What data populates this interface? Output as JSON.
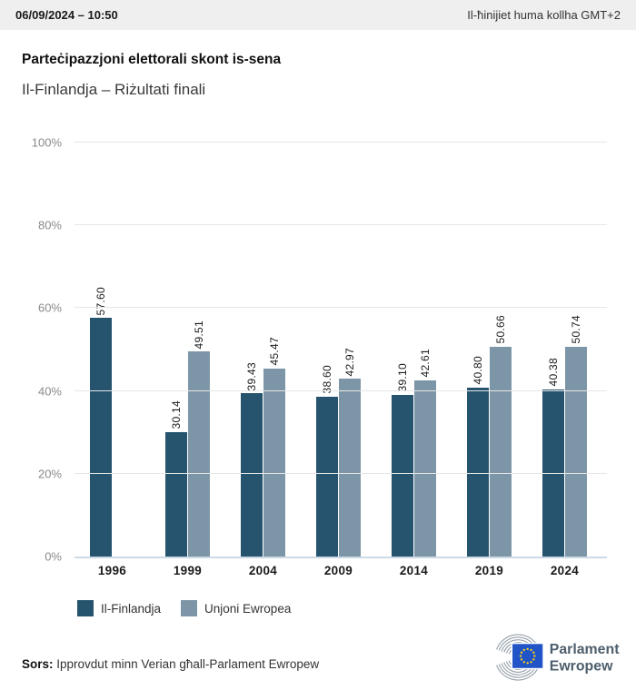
{
  "header": {
    "datetime": "06/09/2024 – 10:50",
    "timezone_note": "Il-ħinijiet huma kollha GMT+2"
  },
  "title": "Parteċipazzjoni elettorali skont is-sena",
  "subtitle": "Il-Finlandja – Riżultati finali",
  "chart_data": {
    "type": "bar",
    "categories": [
      "1996",
      "1999",
      "2004",
      "2009",
      "2014",
      "2019",
      "2024"
    ],
    "series": [
      {
        "name": "Il-Finlandja",
        "color": "#26546F",
        "values": [
          57.6,
          30.14,
          39.43,
          38.6,
          39.1,
          40.8,
          40.38
        ]
      },
      {
        "name": "Unjoni Ewropea",
        "color": "#7D96A7",
        "values": [
          null,
          49.51,
          45.47,
          42.97,
          42.61,
          50.66,
          50.74
        ]
      }
    ],
    "title": "Parteċipazzjoni elettorali skont is-sena",
    "subtitle": "Il-Finlandja – Riżultati finali",
    "xlabel": "",
    "ylabel": "",
    "ylim": [
      0,
      100
    ],
    "yticks_percent": [
      0,
      20,
      40,
      60,
      80,
      100
    ],
    "ytick_suffix": "%",
    "grid": true,
    "legend_position": "bottom",
    "bar_value_labels": "rotated-90",
    "value_label_decimals": 2
  },
  "footer": {
    "source_label": "Sors:",
    "source_text": "Ipprovdut minn Verian għall-Parlament Ewropew"
  },
  "logo": {
    "line1": "Parlament",
    "line2": "Ewropew",
    "flag_color": "#2154C7",
    "star_color": "#FFD617",
    "arc_color": "#98A2AC",
    "text_color": "#4D5E6C"
  }
}
